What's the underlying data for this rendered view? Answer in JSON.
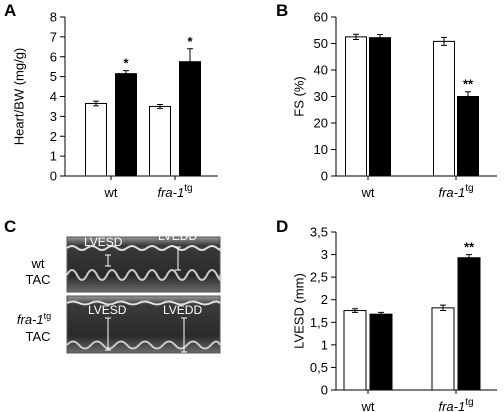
{
  "chart_data": [
    {
      "type": "bar",
      "panel_label": "A",
      "y_label": "Heart/BW (mg/g)",
      "categories": [
        "wt",
        "fra-1"
      ],
      "category_superscripts": [
        null,
        "tg"
      ],
      "italic_categories": [
        false,
        true
      ],
      "series": [
        {
          "color": "#ffffff",
          "values": [
            3.65,
            3.5
          ],
          "errors": [
            0.12,
            0.1
          ],
          "markers": [
            null,
            null
          ]
        },
        {
          "color": "#000000",
          "values": [
            5.15,
            5.75
          ],
          "errors": [
            0.15,
            0.65
          ],
          "markers": [
            "*",
            "*"
          ]
        }
      ],
      "ylim": [
        0,
        8
      ],
      "yticks": [
        0,
        1,
        2,
        3,
        4,
        5,
        6,
        7,
        8
      ]
    },
    {
      "type": "bar",
      "panel_label": "B",
      "y_label": "FS (%)",
      "categories": [
        "wt",
        "fra-1"
      ],
      "category_superscripts": [
        null,
        "tg"
      ],
      "italic_categories": [
        false,
        true
      ],
      "series": [
        {
          "color": "#ffffff",
          "values": [
            52.5,
            50.8
          ],
          "errors": [
            1.0,
            1.5
          ],
          "markers": [
            null,
            null
          ]
        },
        {
          "color": "#000000",
          "values": [
            52.2,
            30
          ],
          "errors": [
            1.2,
            1.8
          ],
          "markers": [
            null,
            "**"
          ]
        }
      ],
      "ylim": [
        0,
        60
      ],
      "yticks": [
        0,
        10,
        20,
        30,
        40,
        50,
        60
      ]
    },
    {
      "type": "bar",
      "panel_label": "D",
      "y_label": "LVESD (mm)",
      "categories": [
        "wt",
        "fra-1"
      ],
      "category_superscripts": [
        null,
        "tg"
      ],
      "italic_categories": [
        false,
        true
      ],
      "series": [
        {
          "color": "#ffffff",
          "values": [
            1.76,
            1.82
          ],
          "errors": [
            0.04,
            0.06
          ],
          "markers": [
            null,
            null
          ]
        },
        {
          "color": "#000000",
          "values": [
            1.68,
            2.93
          ],
          "errors": [
            0.04,
            0.07
          ],
          "markers": [
            null,
            "**"
          ]
        }
      ],
      "ylim": [
        0,
        3.5
      ],
      "yticks": [
        0,
        {
          "value": 0.5,
          "label": "0,5"
        },
        1,
        {
          "value": 1.5,
          "label": "1,5"
        },
        2,
        {
          "value": 2.5,
          "label": "2,5"
        },
        3,
        {
          "value": 3.5,
          "label": "3,5"
        }
      ]
    }
  ],
  "echo_panel": {
    "panel_label": "C",
    "rows": [
      {
        "label": "wt",
        "label_superscript": null,
        "condition": "TAC",
        "systolic": "LVESD",
        "diastolic": "LVEDD"
      },
      {
        "label": "fra-1",
        "label_superscript": "tg",
        "condition": "TAC",
        "systolic": "LVESD",
        "diastolic": "LVEDD"
      }
    ]
  }
}
